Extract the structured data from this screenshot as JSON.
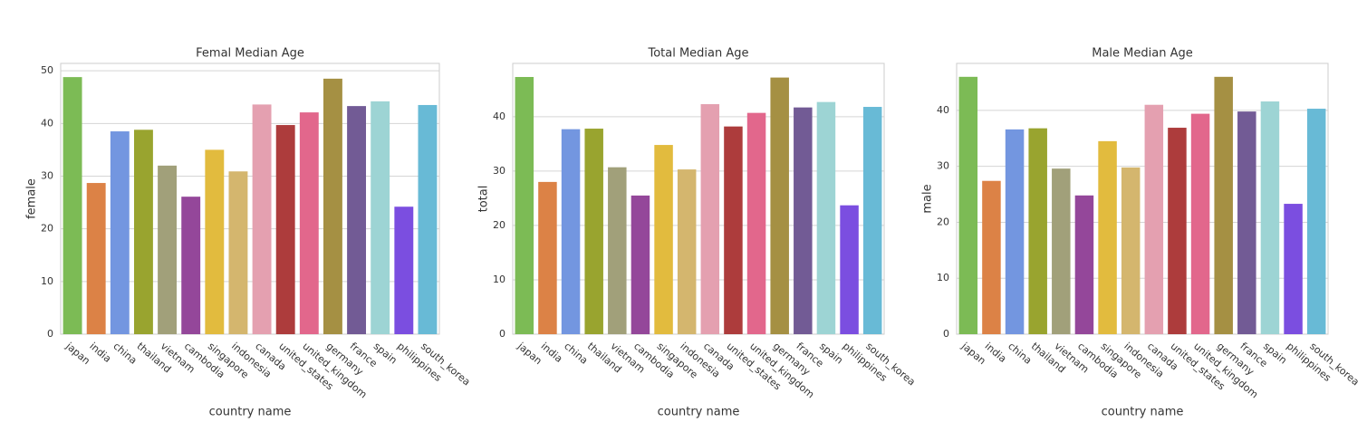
{
  "chart_data": [
    {
      "type": "bar",
      "title": "Femal Median Age",
      "xlabel": "country name",
      "ylabel": "female",
      "categories": [
        "japan",
        "india",
        "china",
        "thailand",
        "vietnam",
        "cambodia",
        "singapore",
        "indonesia",
        "canada",
        "united_states",
        "united_kingdom",
        "germany",
        "france",
        "spain",
        "philippines",
        "south_korea"
      ],
      "values": [
        48.8,
        28.7,
        38.5,
        38.8,
        32,
        26.1,
        35,
        30.9,
        43.6,
        39.7,
        42.1,
        48.5,
        43.3,
        44.2,
        24.2,
        43.5
      ],
      "colors": [
        "#7cbb55",
        "#dc8246",
        "#7396e0",
        "#99a42f",
        "#a1a07a",
        "#94479a",
        "#e2bb3e",
        "#d4b66e",
        "#e4a0b0",
        "#ad3c3c",
        "#e2678c",
        "#a59043",
        "#725b95",
        "#9dd4d4",
        "#7b4ee0",
        "#68bad6"
      ],
      "ylim": [
        0,
        51.4
      ],
      "yticks": [
        0,
        10,
        20,
        30,
        40,
        50
      ],
      "grid": true
    },
    {
      "type": "bar",
      "title": "Total Median Age",
      "xlabel": "country name",
      "ylabel": "total",
      "categories": [
        "japan",
        "india",
        "china",
        "thailand",
        "vietnam",
        "cambodia",
        "singapore",
        "indonesia",
        "canada",
        "united_states",
        "united_kingdom",
        "germany",
        "france",
        "spain",
        "philippines",
        "south_korea"
      ],
      "values": [
        47.3,
        28,
        37.7,
        37.8,
        30.7,
        25.5,
        34.8,
        30.3,
        42.3,
        38.2,
        40.7,
        47.2,
        41.7,
        42.7,
        23.7,
        41.8
      ],
      "colors": [
        "#7cbb55",
        "#dc8246",
        "#7396e0",
        "#99a42f",
        "#a1a07a",
        "#94479a",
        "#e2bb3e",
        "#d4b66e",
        "#e4a0b0",
        "#ad3c3c",
        "#e2678c",
        "#a59043",
        "#725b95",
        "#9dd4d4",
        "#7b4ee0",
        "#68bad6"
      ],
      "ylim": [
        0,
        49.8
      ],
      "yticks": [
        0,
        10,
        20,
        30,
        40
      ],
      "grid": true
    },
    {
      "type": "bar",
      "title": "Male Median Age",
      "xlabel": "country name",
      "ylabel": "male",
      "categories": [
        "japan",
        "india",
        "china",
        "thailand",
        "vietnam",
        "cambodia",
        "singapore",
        "indonesia",
        "canada",
        "united_states",
        "united_kingdom",
        "germany",
        "france",
        "spain",
        "philippines",
        "south_korea"
      ],
      "values": [
        46,
        27.4,
        36.6,
        36.8,
        29.6,
        24.8,
        34.5,
        29.8,
        41,
        36.9,
        39.4,
        46,
        39.8,
        41.6,
        23.3,
        40.3
      ],
      "colors": [
        "#7cbb55",
        "#dc8246",
        "#7396e0",
        "#99a42f",
        "#a1a07a",
        "#94479a",
        "#e2bb3e",
        "#d4b66e",
        "#e4a0b0",
        "#ad3c3c",
        "#e2678c",
        "#a59043",
        "#725b95",
        "#9dd4d4",
        "#7b4ee0",
        "#68bad6"
      ],
      "ylim": [
        0,
        48.4
      ],
      "yticks": [
        0,
        10,
        20,
        30,
        40
      ],
      "grid": true
    }
  ]
}
